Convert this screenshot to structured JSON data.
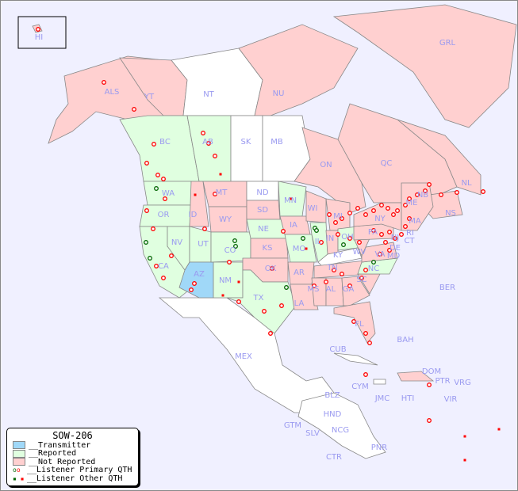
{
  "legend": {
    "title": "SOW-206",
    "items": [
      {
        "label": "__Transmitter",
        "color": "#a0d8f8"
      },
      {
        "label": "__Reported",
        "color": "#e0ffe0"
      },
      {
        "label": "__Not Reported",
        "color": "#ffd0d0"
      },
      {
        "label": "__Listener Primary QTH",
        "symbol": "ring"
      },
      {
        "label": "__Listener Other QTH",
        "symbol": "square"
      }
    ]
  },
  "colors": {
    "ocean": "#f0f0ff",
    "transmitter": "#a0d8f8",
    "reported": "#e0ffe0",
    "not_reported": "#ffd0d0",
    "label": "#9a9af0",
    "listener_red": "#ff0000",
    "listener_green": "#006600"
  },
  "regions": {
    "HI": "HI",
    "ALS": "ALS",
    "YT": "YT",
    "NT": "NT",
    "NU": "NU",
    "GRL": "GRL",
    "BC": "BC",
    "AB": "AB",
    "SK": "SK",
    "MB": "MB",
    "ON": "ON",
    "QC": "QC",
    "NL": "NL",
    "NS": "NS",
    "NB": "NB",
    "WA": "WA",
    "OR": "OR",
    "CA": "CA",
    "NV": "NV",
    "ID": "ID",
    "MT": "MT",
    "WY": "WY",
    "UT": "UT",
    "AZ": "AZ",
    "CO": "CO",
    "NM": "NM",
    "ND": "ND",
    "SD": "SD",
    "NE": "NE",
    "KS": "KS",
    "OK": "OK",
    "TX": "TX",
    "MN": "MN",
    "IA": "IA",
    "MO": "MO",
    "AR": "AR",
    "LA": "LA",
    "WI": "WI",
    "IL": "IL",
    "MS": "MS",
    "MI": "MI",
    "IN": "IN",
    "OH": "OH",
    "KY": "KY",
    "TN": "TN",
    "AL": "AL",
    "GA": "GA",
    "FL": "FL",
    "SC": "SC",
    "NC": "NC",
    "VA": "VA",
    "WV": "WV",
    "PA": "PA",
    "NY": "NY",
    "ME": "ME",
    "MA": "MA",
    "CT": "CT",
    "RI": "RI",
    "NJ": "NJ",
    "DE": "DE",
    "MD": "MD",
    "MEX": "MEX",
    "CUB": "CUB",
    "BAH": "BAH",
    "CYM": "CYM",
    "JMC": "JMC",
    "HTI": "HTI",
    "DOM": "DOM",
    "PTR": "PTR",
    "VRG": "VRG",
    "VIR": "VIR",
    "BLZ": "BLZ",
    "HND": "HND",
    "GTM": "GTM",
    "SLV": "SLV",
    "NCG": "NCG",
    "CTR": "CTR",
    "PNR": "PNR",
    "BER": "BER"
  }
}
